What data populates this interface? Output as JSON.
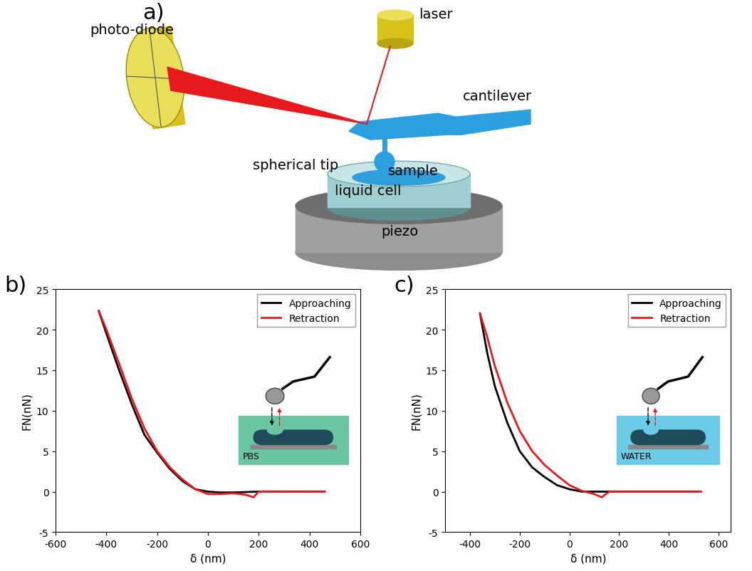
{
  "diagram": {
    "panel": "a)",
    "labels": {
      "photo_diode": "photo-diode",
      "laser": "laser",
      "cantilever": "cantilever",
      "spherical_tip": "spherical tip",
      "sample": "sample",
      "liquid_cell": "liquid cell",
      "piezo": "piezo"
    }
  },
  "chart_data": [
    {
      "type": "line",
      "panel": "b)",
      "xlabel": "δ (nm)",
      "ylabel": "FN(nN)",
      "annotation": "PBS",
      "xlim": [
        -600,
        600
      ],
      "xticks": [
        -600,
        -400,
        -200,
        0,
        200,
        400,
        600
      ],
      "ylim": [
        -5,
        25
      ],
      "yticks": [
        -5,
        0,
        5,
        10,
        15,
        20,
        25
      ],
      "legend": "upper right",
      "series": [
        {
          "name": "Approaching",
          "color": "#000000",
          "x": [
            -430,
            -400,
            -350,
            -300,
            -250,
            -200,
            -150,
            -100,
            -50,
            0,
            50,
            100,
            200,
            300,
            400,
            460
          ],
          "values": [
            22.3,
            19.5,
            15,
            10.8,
            7,
            4.8,
            2.8,
            1.3,
            0.3,
            0,
            -0.1,
            -0.1,
            0,
            0,
            0,
            0
          ]
        },
        {
          "name": "Retraction",
          "color": "#e8191d",
          "x": [
            -430,
            -400,
            -350,
            -300,
            -250,
            -200,
            -150,
            -100,
            -50,
            0,
            50,
            100,
            150,
            180,
            200,
            300,
            460
          ],
          "values": [
            22.3,
            20,
            15.8,
            11.5,
            7.8,
            5,
            3,
            1.5,
            0.3,
            -0.3,
            -0.3,
            -0.2,
            -0.4,
            -0.7,
            0,
            0,
            0
          ]
        }
      ]
    },
    {
      "type": "line",
      "panel": "c)",
      "xlabel": "δ (nm)",
      "ylabel": "FN(nN)",
      "annotation": "WATER",
      "xlim": [
        -500,
        650
      ],
      "xticks": [
        -400,
        -200,
        0,
        200,
        400,
        600
      ],
      "ylim": [
        -5,
        25
      ],
      "yticks": [
        -5,
        0,
        5,
        10,
        15,
        20,
        25
      ],
      "legend": "upper right",
      "series": [
        {
          "name": "Approaching",
          "color": "#000000",
          "x": [
            -360,
            -330,
            -300,
            -250,
            -200,
            -150,
            -100,
            -50,
            0,
            50,
            100,
            200,
            400,
            520
          ],
          "values": [
            22,
            17,
            13,
            8.5,
            5,
            3,
            1.8,
            0.8,
            0.3,
            0,
            0,
            0,
            0,
            0
          ]
        },
        {
          "name": "Retraction",
          "color": "#e8191d",
          "x": [
            -360,
            -330,
            -300,
            -250,
            -200,
            -150,
            -100,
            -50,
            0,
            50,
            100,
            130,
            160,
            200,
            300,
            530
          ],
          "values": [
            22,
            19,
            15.5,
            11,
            7.5,
            5,
            3.3,
            2,
            0.8,
            0.1,
            -0.3,
            -0.7,
            0,
            0,
            0,
            0
          ]
        }
      ]
    }
  ]
}
